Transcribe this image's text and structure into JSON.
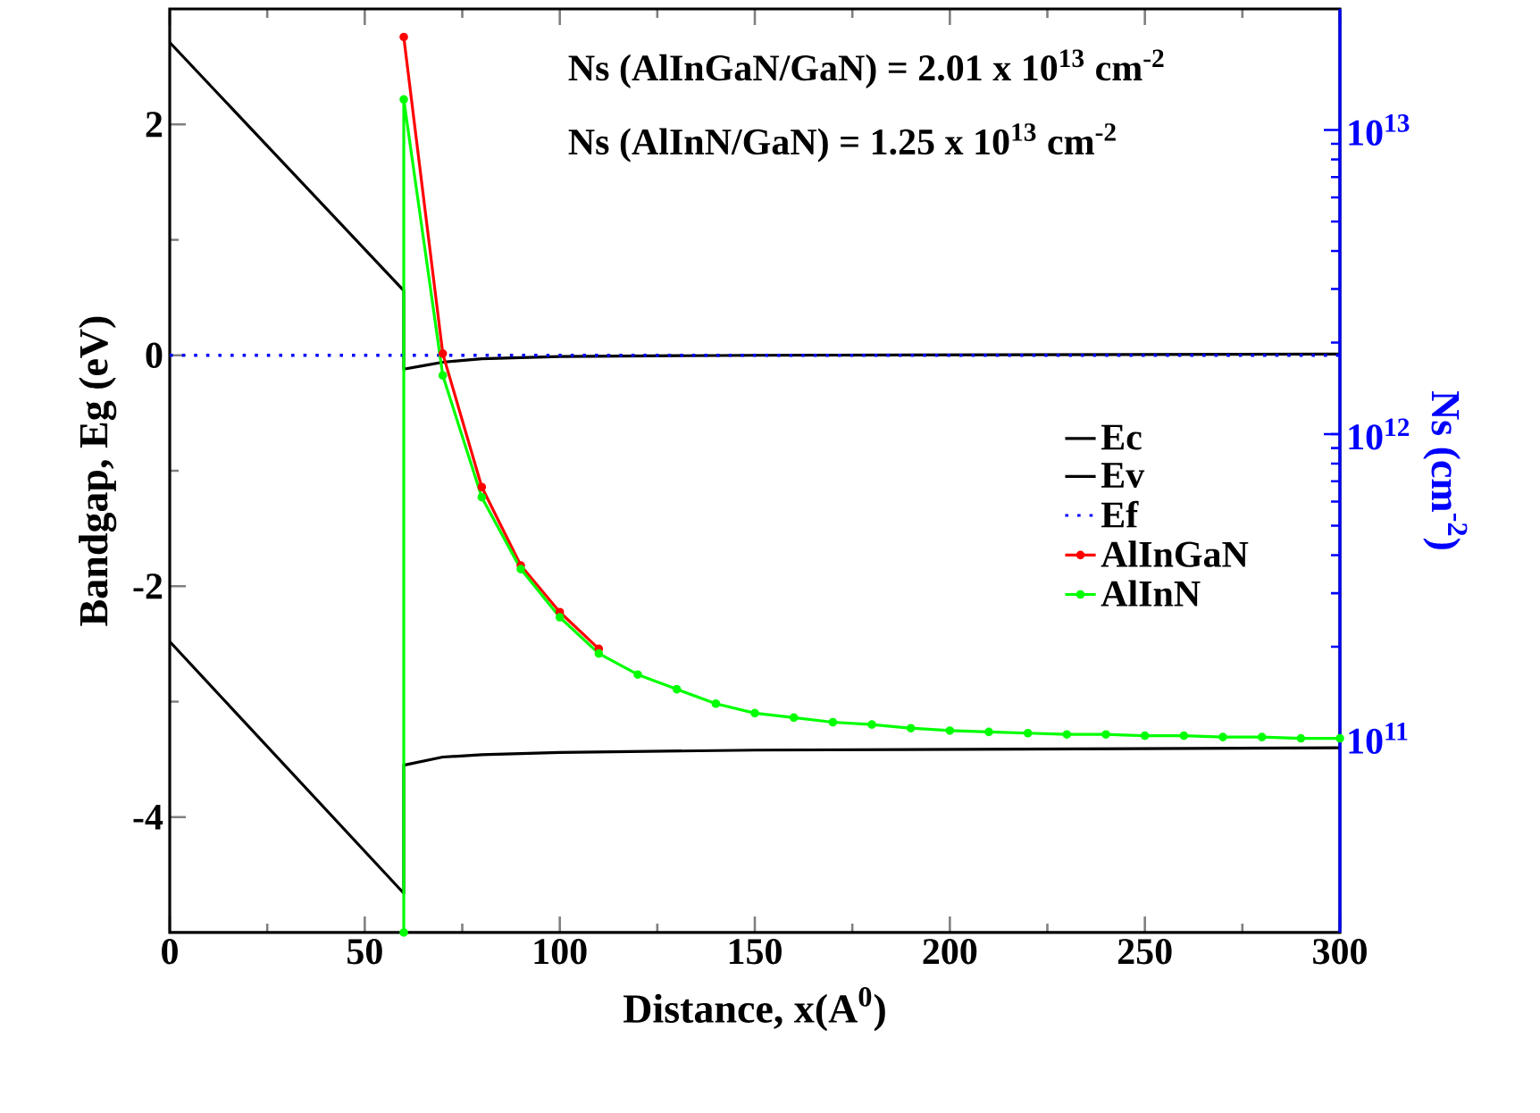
{
  "chart_data": {
    "type": "line",
    "xlabel": "Distance, x(A$^{0}$)",
    "ylabel": "Bandgap, Eg (eV)",
    "y2label": "Ns (cm$^{-2}$)",
    "annotations": [
      "Ns (AlInGaN/GaN)  = 2.01 x 10$^{13}$ cm$^{-2}$",
      "Ns (AlInN/GaN) = 1.25 x 10$^{13}$ cm$^{-2}$"
    ],
    "xlim": [
      0,
      300
    ],
    "xticks": [
      0,
      50,
      100,
      150,
      200,
      250,
      300
    ],
    "ylim": [
      -5,
      3
    ],
    "yticks": [
      -4,
      -2,
      0,
      2
    ],
    "y2lim": [
      23000000000.0,
      25000000000000.0
    ],
    "y2ticks": [
      {
        "value": 100000000000.0,
        "label": "10$^{11}$"
      },
      {
        "value": 1000000000000.0,
        "label": "10$^{12}$"
      },
      {
        "value": 10000000000000.0,
        "label": "10$^{13}$"
      }
    ],
    "log": "y2",
    "legend": "right",
    "series": [
      {
        "name": "Ec",
        "color": "#000000",
        "line_style": "solid",
        "x": [
          0,
          60,
          60,
          65,
          70,
          80,
          100,
          150,
          300
        ],
        "values": [
          2.71,
          0.56,
          -0.12,
          -0.09,
          -0.06,
          -0.03,
          -0.01,
          0.0,
          0.01
        ]
      },
      {
        "name": "Ev",
        "color": "#000000",
        "line_style": "solid",
        "x": [
          0,
          60,
          60,
          70,
          80,
          100,
          150,
          300
        ],
        "values": [
          -2.48,
          -4.66,
          -3.55,
          -3.48,
          -3.46,
          -3.44,
          -3.42,
          -3.4
        ]
      },
      {
        "name": "Ef",
        "color": "#0000ff",
        "line_style": "dotted",
        "x": [
          0,
          300
        ],
        "values": [
          0,
          0
        ]
      },
      {
        "name": "AlInGaN",
        "color": "#ff0000",
        "axis": "y2",
        "marker": "circle",
        "line_style": "solid",
        "x": [
          60,
          70,
          80,
          90,
          100,
          110
        ],
        "values": [
          20200000000000.0,
          1840000000000.0,
          670000000000.0,
          370000000000.0,
          260000000000.0,
          197000000000.0
        ]
      },
      {
        "name": "AlInN",
        "color": "#00ff00",
        "axis": "y2",
        "marker": "circle",
        "line_style": "solid",
        "x": [
          60,
          60,
          70,
          80,
          90,
          100,
          110,
          120,
          130,
          140,
          150,
          160,
          170,
          180,
          190,
          200,
          210,
          220,
          230,
          240,
          250,
          260,
          270,
          280,
          290,
          300
        ],
        "values": [
          23000000000.0,
          12600000000000.0,
          1560000000000.0,
          620000000000.0,
          360000000000.0,
          250000000000.0,
          190000000000.0,
          162000000000.0,
          145000000000.0,
          130000000000.0,
          121000000000.0,
          117000000000.0,
          113000000000.0,
          111000000000.0,
          108000000000.0,
          106000000000.0,
          105000000000.0,
          104000000000.0,
          103000000000.0,
          103000000000.0,
          102000000000.0,
          102000000000.0,
          101000000000.0,
          101000000000.0,
          100000000000.0,
          100000000000.0
        ]
      }
    ]
  }
}
